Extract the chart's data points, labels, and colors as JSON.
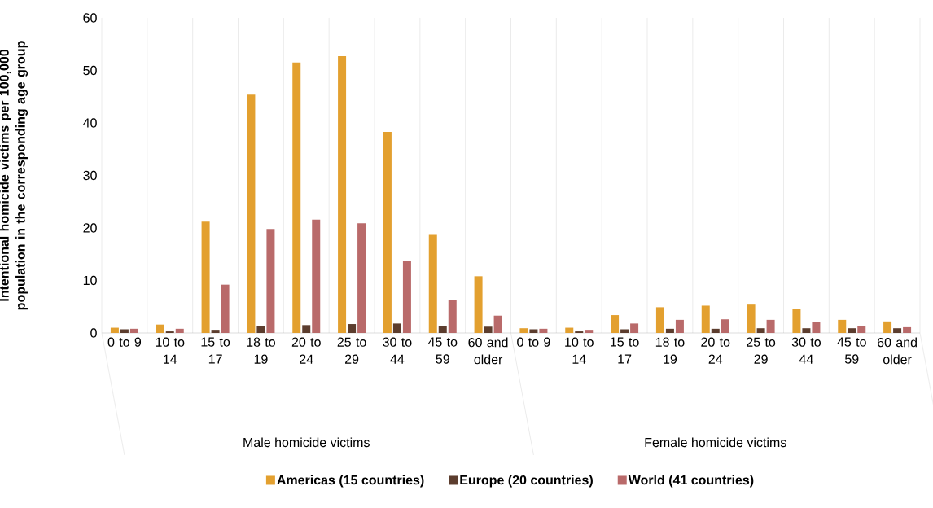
{
  "chart_data": {
    "type": "bar",
    "ylabel": "Intentional homicide victims per 100,000 population in the corresponding age group",
    "categories": [
      "0 to 9",
      "10 to 14",
      "15 to 17",
      "18 to 19",
      "20 to 24",
      "25 to 29",
      "30 to 44",
      "45 to 59",
      "60 and older",
      "0 to 9",
      "10 to 14",
      "15 to 17",
      "18 to 19",
      "20 to 24",
      "25 to 29",
      "30 to 44",
      "45 to 59",
      "60 and older"
    ],
    "series": [
      {
        "name": "Americas (15 countries)",
        "color": "#e3a02f",
        "values": [
          1.0,
          1.6,
          21.2,
          45.4,
          51.5,
          52.7,
          38.3,
          18.7,
          10.8,
          0.9,
          1.0,
          3.4,
          4.9,
          5.2,
          5.4,
          4.5,
          2.5,
          2.2
        ]
      },
      {
        "name": "Europe (20 countries)",
        "color": "#5c3d2e",
        "values": [
          0.7,
          0.3,
          0.6,
          1.3,
          1.5,
          1.7,
          1.8,
          1.4,
          1.2,
          0.7,
          0.3,
          0.7,
          0.8,
          0.8,
          0.9,
          0.9,
          0.9,
          0.9
        ]
      },
      {
        "name": "World (41 countries)",
        "color": "#b96a6a",
        "values": [
          0.8,
          0.8,
          9.2,
          19.8,
          21.6,
          20.9,
          13.8,
          6.3,
          3.3,
          0.8,
          0.6,
          1.8,
          2.5,
          2.6,
          2.5,
          2.1,
          1.4,
          1.1
        ]
      }
    ],
    "annotations": [
      "Male homicide victims",
      "Female homicide victims"
    ],
    "ylim": [
      0,
      60
    ],
    "yticks": [
      0,
      10,
      20,
      30,
      40,
      50,
      60
    ],
    "grid": "x",
    "legend": "bottom"
  }
}
